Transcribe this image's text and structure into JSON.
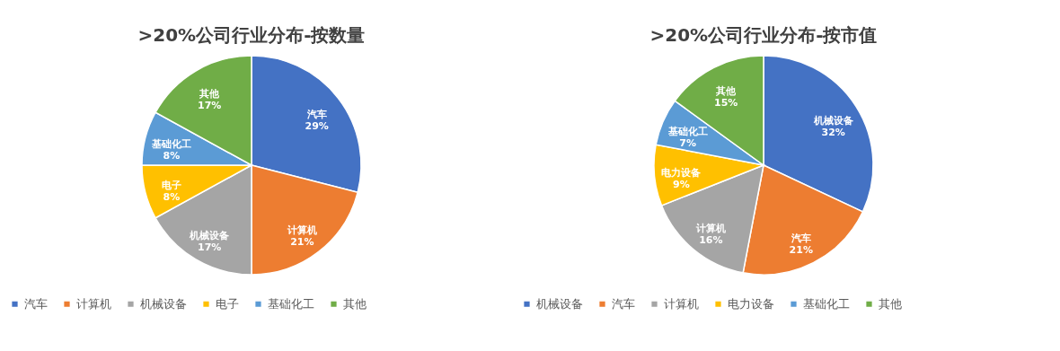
{
  "chart_data": [
    {
      "type": "pie",
      "title": ">20%公司行业分布-按数量",
      "categories": [
        "汽车",
        "计算机",
        "机械设备",
        "电子",
        "基础化工",
        "其他"
      ],
      "values": [
        29,
        21,
        17,
        8,
        8,
        17
      ],
      "value_labels": [
        "29%",
        "21%",
        "17%",
        "8%",
        "8%",
        "17%"
      ],
      "colors": [
        "#4472c4",
        "#ed7d31",
        "#a5a5a5",
        "#ffc000",
        "#5b9bd5",
        "#70ad47"
      ],
      "legend": "bottom"
    },
    {
      "type": "pie",
      "title": ">20%公司行业分布-按市值",
      "categories": [
        "机械设备",
        "汽车",
        "计算机",
        "电力设备",
        "基础化工",
        "其他"
      ],
      "values": [
        32,
        21,
        16,
        9,
        7,
        15
      ],
      "value_labels": [
        "32%",
        "21%",
        "16%",
        "9%",
        "7%",
        "15%"
      ],
      "colors": [
        "#4472c4",
        "#ed7d31",
        "#a5a5a5",
        "#ffc000",
        "#5b9bd5",
        "#70ad47"
      ],
      "legend": "bottom"
    }
  ]
}
